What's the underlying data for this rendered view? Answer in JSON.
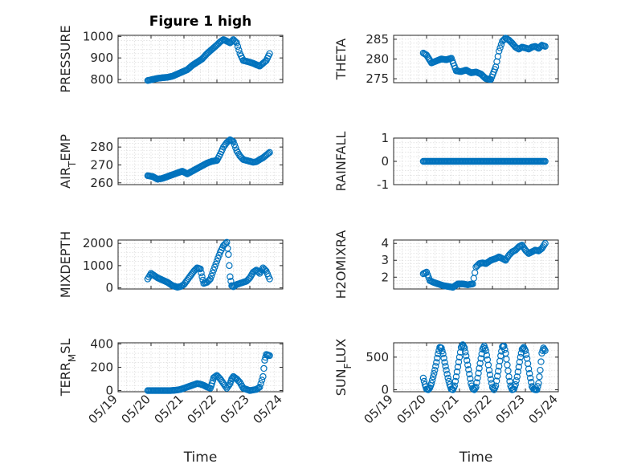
{
  "colors": {
    "marker": "#0072BD",
    "axes": "#262626",
    "grid": "#d3d3d3"
  },
  "chart_data": [
    {
      "type": "scatter",
      "title": "Figure 1 high",
      "ylabel": "PRESSURE",
      "ylim": [
        785,
        1005
      ],
      "yticks": [
        "800",
        "900",
        "1000"
      ],
      "ytick_values": [
        800,
        900,
        1000
      ],
      "xlim": [
        0,
        5
      ],
      "xticks": [],
      "xlabel": "",
      "grid": true,
      "x": [
        0.9,
        1.05,
        1.2,
        1.35,
        1.5,
        1.65,
        1.8,
        1.95,
        2.1,
        2.25,
        2.4,
        2.55,
        2.7,
        2.85,
        3.0,
        3.1,
        3.2,
        3.3,
        3.4,
        3.5,
        3.6,
        3.7,
        3.8,
        3.9,
        4.0,
        4.1,
        4.2,
        4.3,
        4.4,
        4.5,
        4.6
      ],
      "y": [
        795,
        800,
        805,
        808,
        810,
        815,
        825,
        835,
        845,
        865,
        880,
        895,
        920,
        940,
        960,
        975,
        985,
        978,
        970,
        985,
        970,
        920,
        888,
        884,
        880,
        875,
        868,
        862,
        875,
        888,
        920
      ]
    },
    {
      "type": "scatter",
      "title": "",
      "ylabel": "THETA",
      "ylim": [
        274,
        286
      ],
      "yticks": [
        "275",
        "280",
        "285"
      ],
      "ytick_values": [
        275,
        280,
        285
      ],
      "xlim": [
        0,
        5
      ],
      "xticks": [],
      "xlabel": "",
      "grid": true,
      "x": [
        0.9,
        1.0,
        1.15,
        1.3,
        1.45,
        1.6,
        1.75,
        1.9,
        2.05,
        2.2,
        2.35,
        2.5,
        2.65,
        2.8,
        2.95,
        3.1,
        3.2,
        3.3,
        3.4,
        3.5,
        3.6,
        3.7,
        3.8,
        3.9,
        4.0,
        4.1,
        4.2,
        4.3,
        4.4,
        4.5,
        4.6
      ],
      "y": [
        281.5,
        281,
        279,
        279.5,
        280,
        279.8,
        280.2,
        277,
        276.8,
        277.2,
        276.5,
        276.7,
        276.2,
        275,
        274.8,
        278,
        282,
        284.5,
        285.3,
        284.8,
        284,
        283,
        282.5,
        283,
        282.8,
        282.5,
        283,
        283.2,
        282.7,
        283.5,
        283.2
      ]
    },
    {
      "type": "scatter",
      "title": "",
      "ylabel": "AIR_TEMP",
      "ylim": [
        259,
        285
      ],
      "yticks": [
        "260",
        "270",
        "280"
      ],
      "ytick_values": [
        260,
        270,
        280
      ],
      "xlim": [
        0,
        5
      ],
      "xticks": [],
      "xlabel": "",
      "grid": true,
      "x": [
        0.9,
        1.05,
        1.2,
        1.35,
        1.5,
        1.65,
        1.8,
        1.95,
        2.1,
        2.25,
        2.4,
        2.55,
        2.7,
        2.85,
        3.0,
        3.1,
        3.2,
        3.3,
        3.4,
        3.5,
        3.6,
        3.7,
        3.8,
        3.9,
        4.0,
        4.1,
        4.2,
        4.3,
        4.4,
        4.5,
        4.6
      ],
      "y": [
        264,
        263.5,
        262,
        262.5,
        263.5,
        264.5,
        265.5,
        266.5,
        265,
        266.5,
        268,
        269.5,
        271,
        272,
        272.5,
        276,
        280,
        282.5,
        284,
        283,
        278,
        275,
        273,
        272.5,
        272,
        271.5,
        271.8,
        273,
        274,
        275.5,
        277
      ]
    },
    {
      "type": "scatter",
      "title": "",
      "ylabel": "RAINFALL",
      "ylim": [
        -1,
        1
      ],
      "yticks": [
        "-1",
        "0",
        "1"
      ],
      "ytick_values": [
        -1,
        0,
        1
      ],
      "xlim": [
        0,
        5
      ],
      "xticks": [],
      "xlabel": "",
      "grid": true,
      "x": [
        0.9,
        1.0,
        1.1,
        1.2,
        1.3,
        1.4,
        1.5,
        1.6,
        1.7,
        1.8,
        1.9,
        2.0,
        2.1,
        2.2,
        2.3,
        2.4,
        2.5,
        2.6,
        2.7,
        2.8,
        2.9,
        3.0,
        3.1,
        3.2,
        3.3,
        3.4,
        3.5,
        3.6,
        3.7,
        3.8,
        3.9,
        4.0,
        4.1,
        4.2,
        4.3,
        4.4,
        4.5,
        4.6
      ],
      "y": [
        0,
        0,
        0,
        0,
        0,
        0,
        0,
        0,
        0,
        0,
        0,
        0,
        0,
        0,
        0,
        0,
        0,
        0,
        0,
        0,
        0,
        0,
        0,
        0,
        0,
        0,
        0,
        0,
        0,
        0,
        0,
        0,
        0,
        0,
        0,
        0,
        0,
        0
      ]
    },
    {
      "type": "scatter",
      "title": "",
      "ylabel": "MIXDEPTH",
      "ylim": [
        -50,
        2150
      ],
      "yticks": [
        "0",
        "1000",
        "2000"
      ],
      "ytick_values": [
        0,
        1000,
        2000
      ],
      "xlim": [
        0,
        5
      ],
      "xticks": [],
      "xlabel": "",
      "grid": true,
      "x": [
        0.9,
        1.0,
        1.1,
        1.2,
        1.35,
        1.5,
        1.65,
        1.8,
        1.9,
        2.0,
        2.1,
        2.2,
        2.3,
        2.4,
        2.5,
        2.55,
        2.6,
        2.7,
        2.8,
        2.9,
        3.0,
        3.1,
        3.2,
        3.3,
        3.35,
        3.4,
        3.45,
        3.5,
        3.6,
        3.7,
        3.8,
        3.9,
        4.0,
        4.1,
        4.2,
        4.3,
        4.4,
        4.5,
        4.6
      ],
      "y": [
        400,
        650,
        550,
        450,
        350,
        250,
        100,
        30,
        60,
        150,
        350,
        550,
        750,
        900,
        850,
        500,
        200,
        250,
        400,
        800,
        1200,
        1600,
        1900,
        2050,
        1500,
        500,
        100,
        50,
        150,
        200,
        250,
        300,
        450,
        700,
        800,
        650,
        900,
        750,
        400
      ]
    },
    {
      "type": "scatter",
      "title": "",
      "ylabel": "H2OMIXRA",
      "ylim": [
        1.3,
        4.2
      ],
      "yticks": [
        "2",
        "3",
        "4"
      ],
      "ytick_values": [
        2,
        3,
        4
      ],
      "xlim": [
        0,
        5
      ],
      "xticks": [],
      "xlabel": "",
      "grid": true,
      "x": [
        0.9,
        1.0,
        1.1,
        1.2,
        1.35,
        1.5,
        1.65,
        1.8,
        1.95,
        2.1,
        2.25,
        2.4,
        2.5,
        2.6,
        2.7,
        2.8,
        2.95,
        3.1,
        3.2,
        3.3,
        3.4,
        3.5,
        3.6,
        3.7,
        3.8,
        3.9,
        4.0,
        4.1,
        4.2,
        4.3,
        4.4,
        4.5,
        4.6
      ],
      "y": [
        2.2,
        2.3,
        1.8,
        1.7,
        1.6,
        1.5,
        1.45,
        1.4,
        1.6,
        1.6,
        1.55,
        1.6,
        2.6,
        2.8,
        2.85,
        2.8,
        3.0,
        3.1,
        3.2,
        3.1,
        3.0,
        3.3,
        3.5,
        3.6,
        3.8,
        3.9,
        3.6,
        3.4,
        3.5,
        3.6,
        3.55,
        3.7,
        4.0
      ]
    },
    {
      "type": "scatter",
      "title": "",
      "ylabel": "TERR_MSL",
      "ylim": [
        -10,
        410
      ],
      "yticks": [
        "0",
        "200",
        "400"
      ],
      "ytick_values": [
        0,
        200,
        400
      ],
      "xlim": [
        0,
        5
      ],
      "xticks": [
        "05/19",
        "05/20",
        "05/21",
        "05/22",
        "05/23",
        "05/24"
      ],
      "xtick_values": [
        0,
        1,
        2,
        3,
        4,
        5
      ],
      "xlabel": "Time",
      "grid": true,
      "x": [
        0.9,
        1.0,
        1.1,
        1.2,
        1.3,
        1.4,
        1.5,
        1.6,
        1.7,
        1.8,
        1.9,
        2.0,
        2.1,
        2.2,
        2.3,
        2.4,
        2.5,
        2.6,
        2.7,
        2.8,
        2.85,
        2.9,
        3.0,
        3.1,
        3.2,
        3.3,
        3.4,
        3.45,
        3.5,
        3.6,
        3.7,
        3.8,
        3.9,
        4.0,
        4.1,
        4.2,
        4.3,
        4.4,
        4.45,
        4.5,
        4.6
      ],
      "y": [
        0,
        0,
        0,
        0,
        0,
        0,
        0,
        0,
        2,
        5,
        10,
        20,
        30,
        40,
        50,
        60,
        55,
        45,
        30,
        20,
        60,
        110,
        130,
        100,
        60,
        20,
        60,
        100,
        120,
        100,
        70,
        20,
        10,
        0,
        5,
        10,
        30,
        120,
        260,
        310,
        300
      ]
    },
    {
      "type": "scatter",
      "title": "",
      "ylabel": "SUN_FLUX",
      "ylim": [
        -30,
        720
      ],
      "yticks": [
        "0",
        "500"
      ],
      "ytick_values": [
        0,
        500
      ],
      "xlim": [
        0,
        5
      ],
      "xticks": [
        "05/19",
        "05/20",
        "05/21",
        "05/22",
        "05/23",
        "05/24"
      ],
      "xtick_values": [
        0,
        1,
        2,
        3,
        4,
        5
      ],
      "xlabel": "Time",
      "grid": true,
      "x": [
        0.9,
        0.95,
        1.0,
        1.05,
        1.1,
        1.15,
        1.2,
        1.25,
        1.3,
        1.35,
        1.4,
        1.45,
        1.5,
        1.55,
        1.6,
        1.65,
        1.7,
        1.75,
        1.8,
        1.85,
        1.9,
        1.95,
        2.0,
        2.05,
        2.1,
        2.15,
        2.2,
        2.25,
        2.3,
        2.35,
        2.4,
        2.45,
        2.5,
        2.55,
        2.6,
        2.65,
        2.7,
        2.75,
        2.8,
        2.85,
        2.9,
        2.95,
        3.0,
        3.05,
        3.1,
        3.15,
        3.2,
        3.25,
        3.3,
        3.35,
        3.4,
        3.45,
        3.5,
        3.55,
        3.6,
        3.65,
        3.7,
        3.75,
        3.8,
        3.85,
        3.9,
        3.95,
        4.0,
        4.05,
        4.1,
        4.15,
        4.2,
        4.25,
        4.3,
        4.35,
        4.4,
        4.45,
        4.5,
        4.55,
        4.6
      ],
      "y": [
        180,
        80,
        10,
        0,
        30,
        100,
        200,
        300,
        420,
        550,
        650,
        640,
        550,
        420,
        300,
        180,
        80,
        10,
        0,
        60,
        200,
        350,
        500,
        650,
        690,
        640,
        520,
        380,
        240,
        100,
        20,
        0,
        40,
        180,
        330,
        480,
        620,
        670,
        600,
        460,
        300,
        160,
        40,
        0,
        60,
        210,
        360,
        520,
        660,
        670,
        560,
        380,
        200,
        60,
        0,
        10,
        80,
        200,
        350,
        500,
        620,
        650,
        600,
        480,
        320,
        180,
        50,
        10,
        0,
        0,
        100,
        300,
        560,
        640,
        600
      ]
    }
  ],
  "xtick_labels": [
    "05/19",
    "05/20",
    "05/21",
    "05/22",
    "05/23",
    "05/24"
  ]
}
